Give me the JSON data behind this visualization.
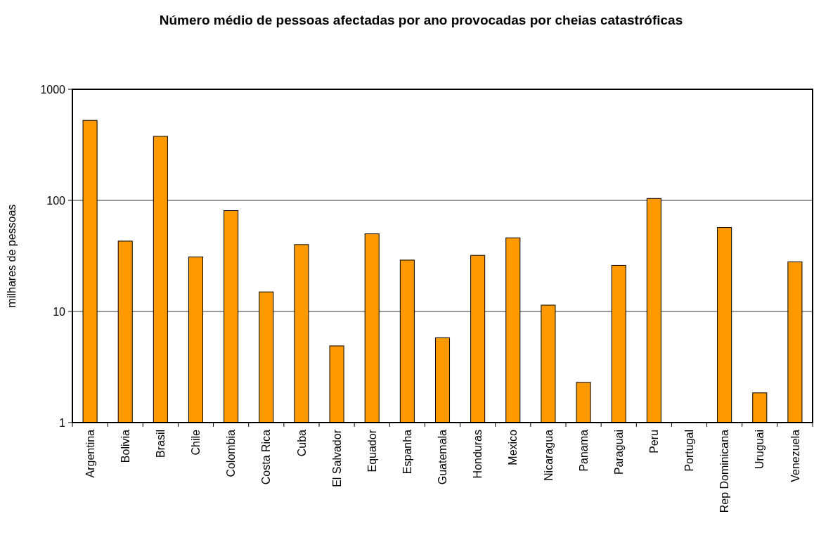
{
  "chart_data": {
    "type": "bar",
    "title": "Número médio de pessoas afectadas por ano provocadas por cheias catastróficas",
    "ylabel": "milhares de pessoas",
    "categories": [
      "Argentina",
      "Bolivia",
      "Brasil",
      "Chile",
      "Colombia",
      "Costa Rica",
      "Cuba",
      "El Salvador",
      "Equador",
      "Espanha",
      "Guatemala",
      "Honduras",
      "Mexico",
      "Nicaragua",
      "Panama",
      "Paraguai",
      "Peru",
      "Portugal",
      "Rep Dominicana",
      "Uruguai",
      "Venezuela"
    ],
    "values": [
      525,
      43,
      377,
      31,
      81,
      15,
      40,
      4.9,
      50,
      29,
      5.8,
      32,
      46,
      11.4,
      2.3,
      26,
      104,
      null,
      57,
      1.85,
      28
    ],
    "color": "#ff9900",
    "log": true,
    "ylim": [
      1,
      1000
    ],
    "yticks": [
      1,
      10,
      100,
      1000
    ],
    "grid": "y"
  }
}
